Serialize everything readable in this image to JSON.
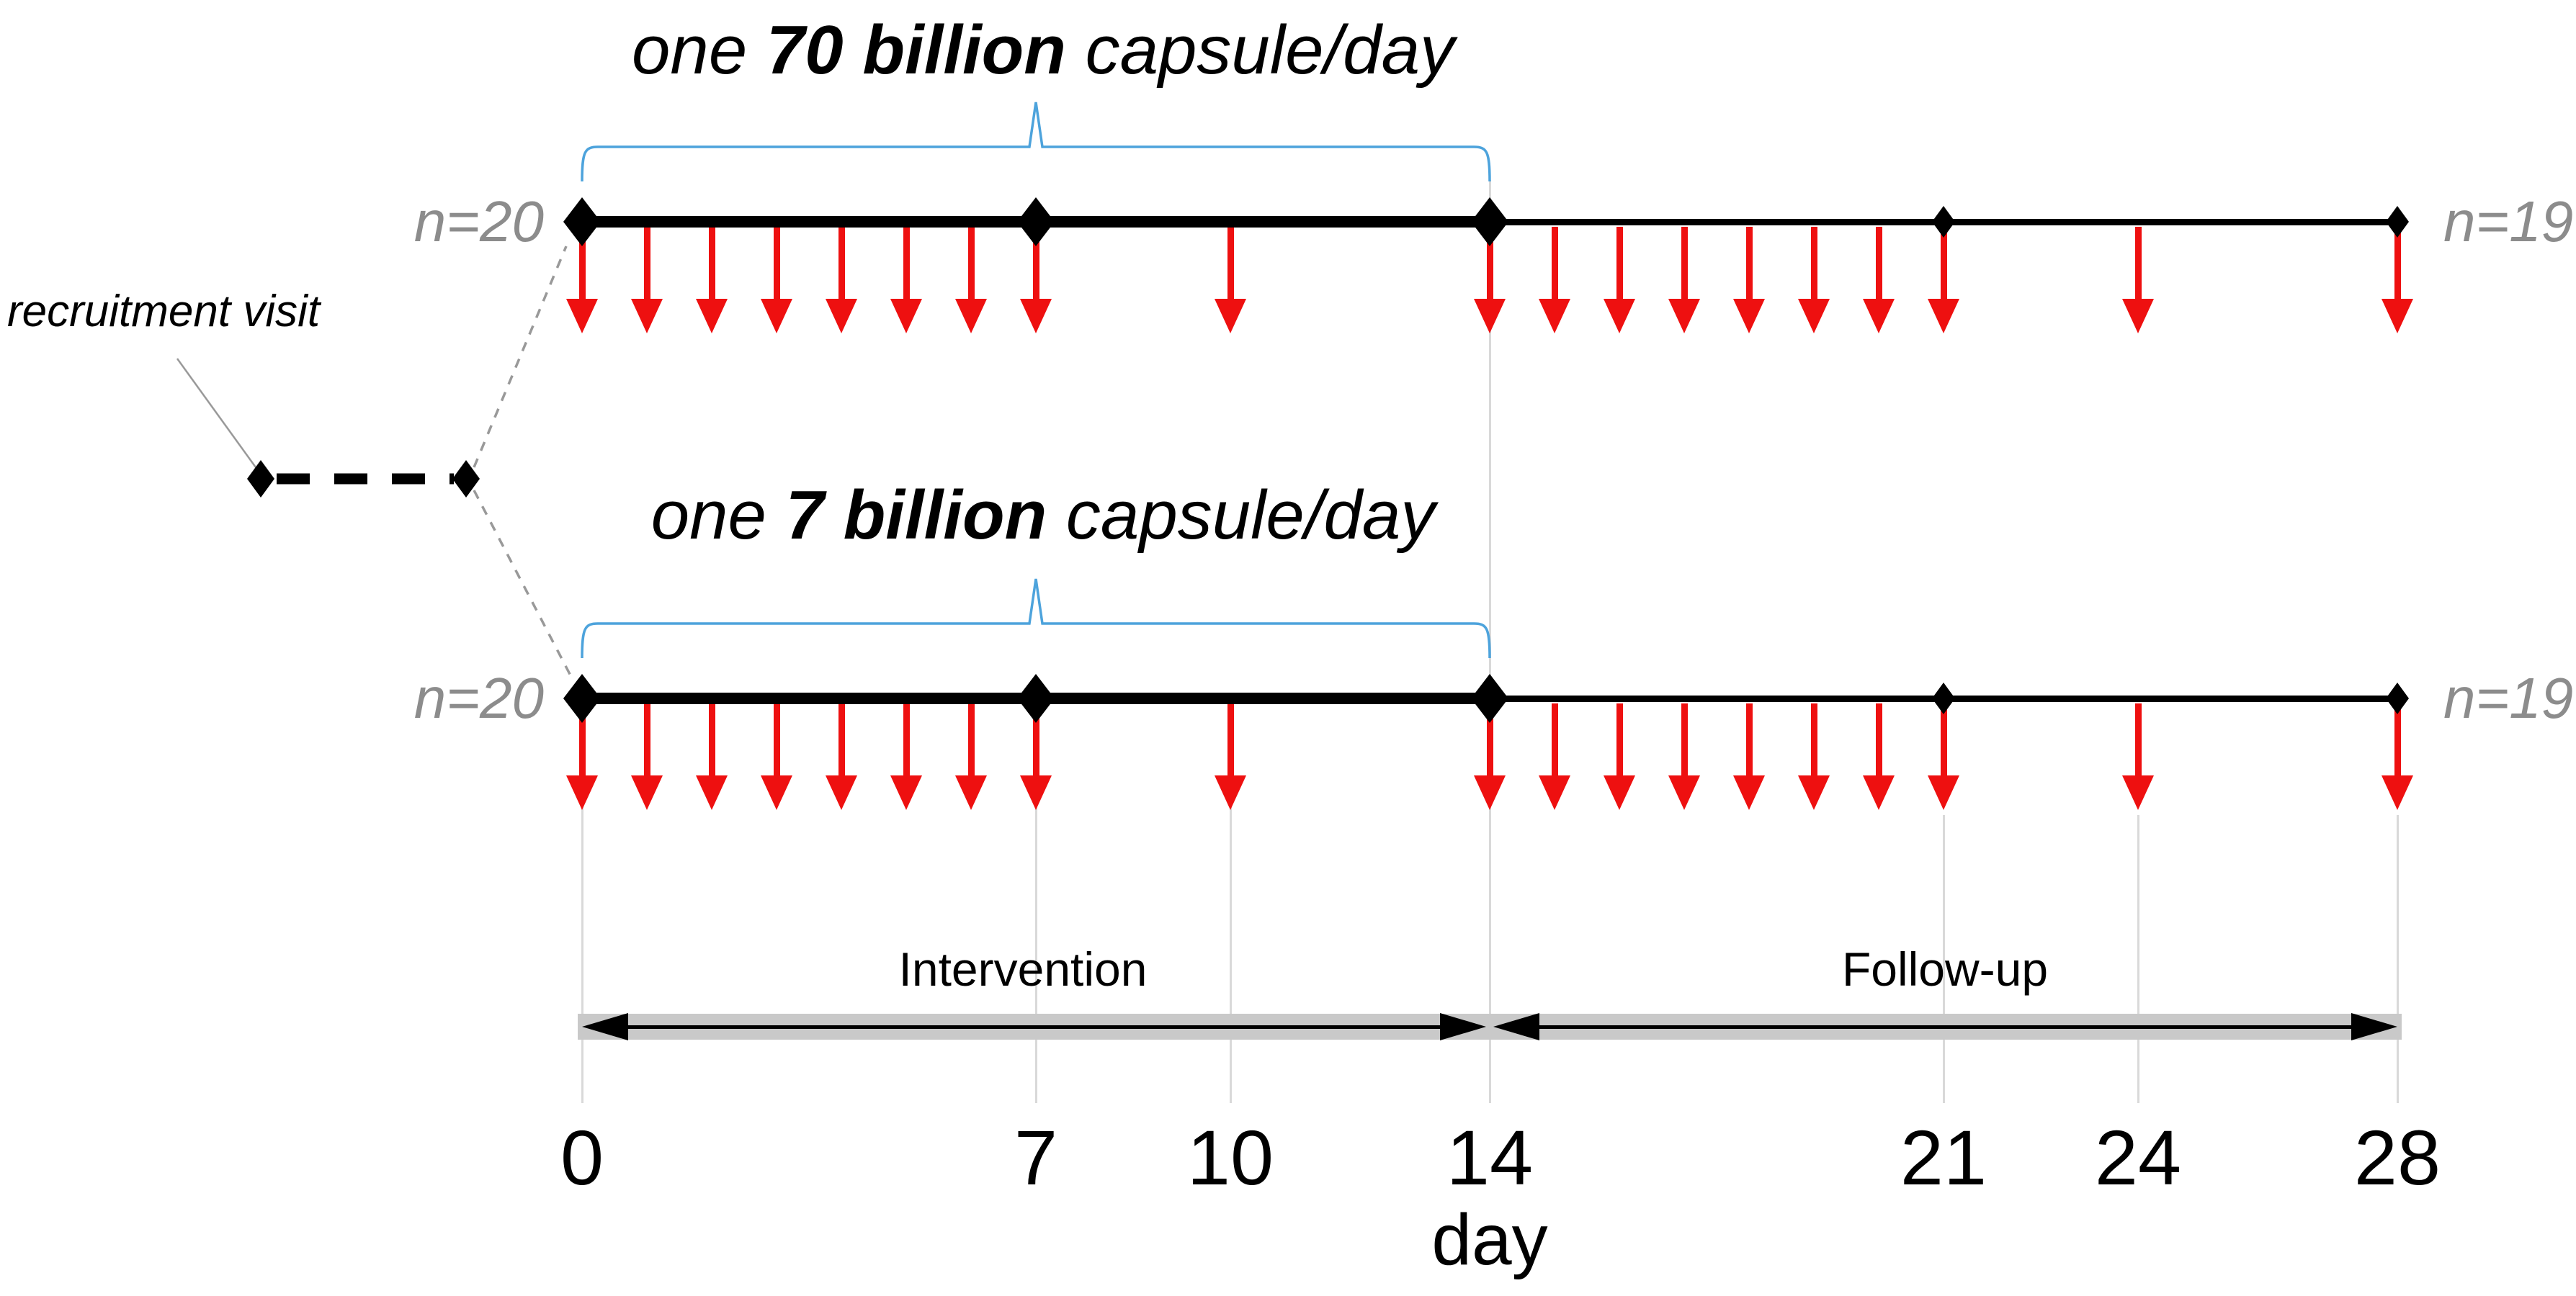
{
  "figure": {
    "type": "randomised-trial-timeline",
    "recruitment": {
      "label": "recruitment visit"
    },
    "arms": [
      {
        "id": "arm-70-billion",
        "title": {
          "pre": "one ",
          "dose": "70 billion",
          "post": " capsule/day"
        },
        "n_start": "n=20",
        "n_end": "n=19",
        "dosing_brace_days": {
          "from": 0,
          "to": 14
        },
        "major_visit_days": [
          0,
          7,
          14
        ],
        "minor_visit_days": [
          21,
          28
        ],
        "sample_arrow_days": [
          0,
          1,
          2,
          3,
          4,
          5,
          6,
          7,
          10,
          14,
          15,
          16,
          17,
          18,
          19,
          20,
          21,
          24,
          28
        ]
      },
      {
        "id": "arm-7-billion",
        "title": {
          "pre": "one ",
          "dose": "7 billion",
          "post": " capsule/day"
        },
        "n_start": "n=20",
        "n_end": "n=19",
        "dosing_brace_days": {
          "from": 0,
          "to": 14
        },
        "major_visit_days": [
          0,
          7,
          14
        ],
        "minor_visit_days": [
          21,
          28
        ],
        "sample_arrow_days": [
          0,
          1,
          2,
          3,
          4,
          5,
          6,
          7,
          10,
          14,
          15,
          16,
          17,
          18,
          19,
          20,
          21,
          24,
          28
        ]
      }
    ],
    "periods": [
      {
        "label": "Intervention",
        "from_day": 0,
        "to_day": 14
      },
      {
        "label": "Follow-up",
        "from_day": 14,
        "to_day": 28
      }
    ],
    "axis": {
      "title": "day",
      "tick_days": [
        0,
        7,
        10,
        14,
        21,
        24,
        28
      ]
    },
    "colors": {
      "timeline_black": "#000000",
      "sample_arrow_red": "#ee1010",
      "brace_blue": "#4da3dc",
      "muted_text_gray": "#8c8c8c",
      "gridline_gray": "#d9d9d9",
      "period_band_gray": "#c9c9c9",
      "connector_gray": "#999999"
    }
  }
}
